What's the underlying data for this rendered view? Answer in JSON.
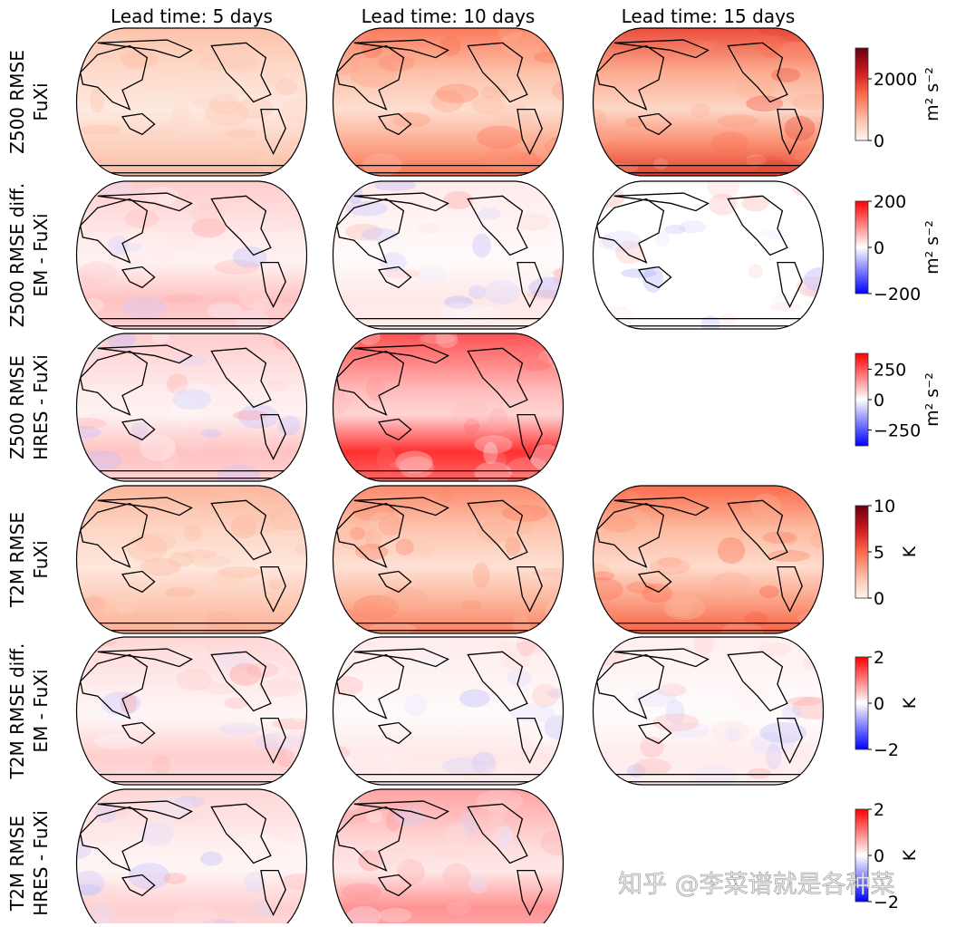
{
  "chart_data": {
    "type": "heatmap",
    "subtype": "global map panels (Robinson projection)",
    "column_titles": [
      "Lead time: 5 days",
      "Lead time: 10 days",
      "Lead time: 15 days"
    ],
    "rows": [
      {
        "label_outer": "Z500 RMSE",
        "label_inner": "FuXi",
        "kind": "rmse",
        "panels": [
          true,
          true,
          true
        ],
        "intensity": [
          0.25,
          0.5,
          0.65
        ],
        "colorbar": {
          "cmap": "Reds",
          "range": [
            0,
            3000
          ],
          "ticks": [
            "0",
            "2000"
          ],
          "tick_values": [
            0,
            2000
          ],
          "unit": "m² s⁻²"
        }
      },
      {
        "label_outer": "Z500 RMSE diff.",
        "label_inner": "EM - FuXi",
        "kind": "diff",
        "panels": [
          true,
          true,
          true
        ],
        "intensity": [
          0.25,
          0.1,
          0.0
        ],
        "colorbar": {
          "cmap": "bwr",
          "range": [
            -200,
            200
          ],
          "ticks": [
            "200",
            "0",
            "−200"
          ],
          "tick_values": [
            200,
            0,
            -200
          ],
          "unit": "m² s⁻²"
        }
      },
      {
        "label_outer": "Z500 RMSE",
        "label_inner": "HRES - FuXi",
        "kind": "diff",
        "panels": [
          true,
          true,
          false
        ],
        "intensity": [
          0.25,
          0.85
        ],
        "colorbar": {
          "cmap": "bwr",
          "range": [
            -380,
            380
          ],
          "ticks": [
            "250",
            "0",
            "−250"
          ],
          "tick_values": [
            250,
            0,
            -250
          ],
          "unit": "m² s⁻²"
        }
      },
      {
        "label_outer": "T2M RMSE",
        "label_inner": "FuXi",
        "kind": "rmse",
        "panels": [
          true,
          true,
          true
        ],
        "intensity": [
          0.3,
          0.45,
          0.55
        ],
        "colorbar": {
          "cmap": "Reds",
          "range": [
            0,
            10
          ],
          "ticks": [
            "10",
            "5",
            "0"
          ],
          "tick_values": [
            10,
            5,
            0
          ],
          "unit": "K"
        }
      },
      {
        "label_outer": "T2M RMSE diff.",
        "label_inner": "EM - FuXi",
        "kind": "diff",
        "panels": [
          true,
          true,
          true
        ],
        "intensity": [
          0.2,
          0.1,
          0.08
        ],
        "colorbar": {
          "cmap": "bwr",
          "range": [
            -2,
            2
          ],
          "ticks": [
            "2",
            "0",
            "−2"
          ],
          "tick_values": [
            2,
            0,
            -2
          ],
          "unit": "K"
        }
      },
      {
        "label_outer": "T2M RMSE",
        "label_inner": "HRES - FuXi",
        "kind": "diff",
        "panels": [
          true,
          true,
          false
        ],
        "intensity": [
          0.2,
          0.45
        ],
        "colorbar": {
          "cmap": "bwr",
          "range": [
            -2,
            2
          ],
          "ticks": [
            "2",
            "0",
            "−2"
          ],
          "tick_values": [
            2,
            0,
            -2
          ],
          "unit": "K"
        }
      }
    ],
    "colors": {
      "reds_max": "#67000d",
      "reds_mid": "#f4694a",
      "reds_min": "#fff5f0",
      "bwr_pos": "#ff0000",
      "bwr_zero": "#ffffff",
      "bwr_neg": "#0000ff"
    }
  },
  "watermark": "知乎 @李菜谱就是各种菜"
}
